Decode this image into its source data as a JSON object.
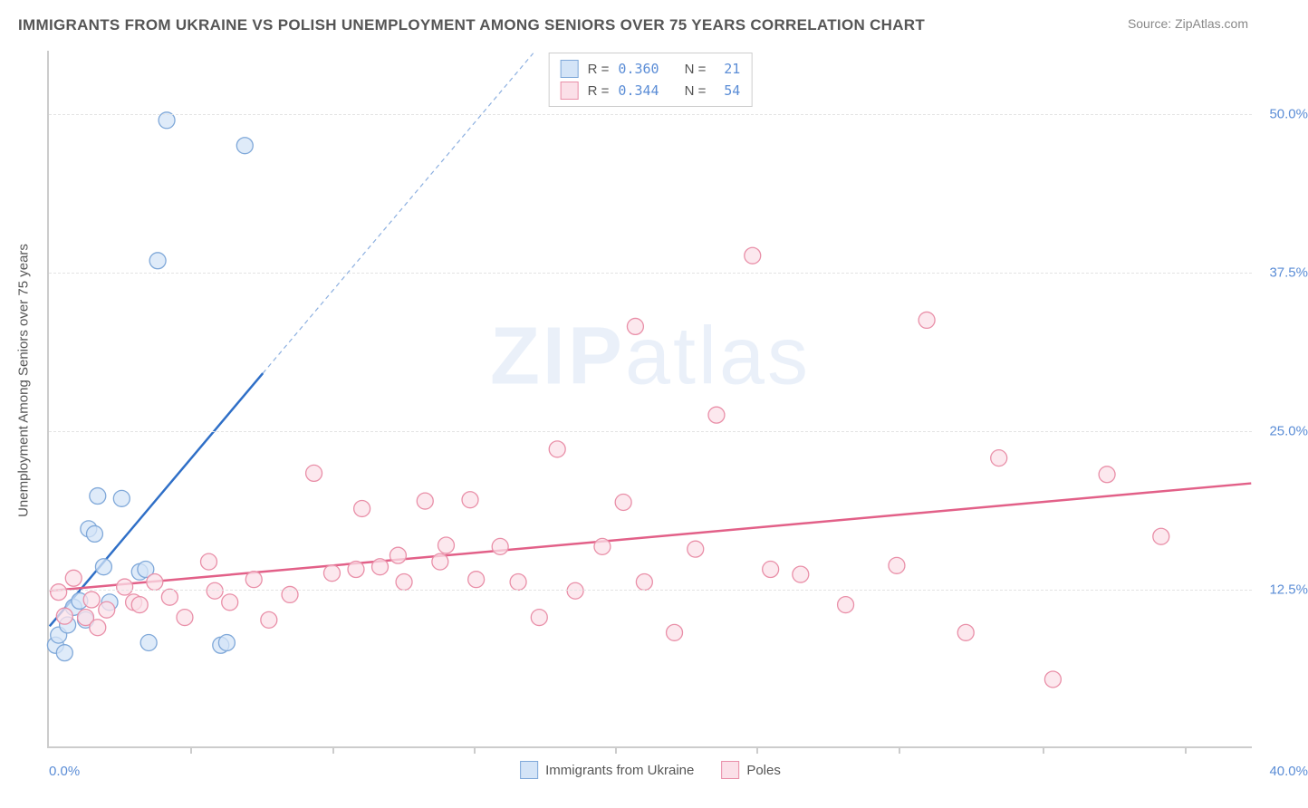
{
  "title": "IMMIGRANTS FROM UKRAINE VS POLISH UNEMPLOYMENT AMONG SENIORS OVER 75 YEARS CORRELATION CHART",
  "source_label": "Source: ",
  "source_value": "ZipAtlas.com",
  "ylabel": "Unemployment Among Seniors over 75 years",
  "watermark_part1": "ZIP",
  "watermark_part2": "atlas",
  "chart": {
    "type": "scatter",
    "xlim": [
      0,
      40
    ],
    "ylim": [
      0,
      55
    ],
    "xtick_labels": [
      "0.0%",
      "40.0%"
    ],
    "xtick_positions": [
      0,
      40
    ],
    "xtick_minor": [
      4.7,
      9.4,
      14.1,
      18.8,
      23.5,
      28.2,
      33,
      37.7
    ],
    "ytick_labels": [
      "12.5%",
      "25.0%",
      "37.5%",
      "50.0%"
    ],
    "ytick_positions": [
      12.5,
      25,
      37.5,
      50
    ],
    "grid_color": "#e3e3e3",
    "axis_color": "#cccccc",
    "background": "#ffffff",
    "marker_radius": 9,
    "marker_stroke_width": 1.3,
    "trend_line_width": 2.5,
    "trend_dash": "5,4"
  },
  "series": [
    {
      "name": "Immigrants from Ukraine",
      "fill": "#d4e4f7",
      "stroke": "#7fa8d9",
      "line_color": "#2f6fc7",
      "R": "0.360",
      "N": "21",
      "trend": {
        "x1": 0,
        "y1": 9.5,
        "x2": 7.1,
        "y2": 29.5,
        "dash_x2": 16.1,
        "dash_y2": 54.8
      },
      "points": [
        [
          0.2,
          8.0
        ],
        [
          0.3,
          8.8
        ],
        [
          0.5,
          7.4
        ],
        [
          0.6,
          9.6
        ],
        [
          0.8,
          11.0
        ],
        [
          1.0,
          11.5
        ],
        [
          1.2,
          10.0
        ],
        [
          1.3,
          17.2
        ],
        [
          1.5,
          16.8
        ],
        [
          1.6,
          19.8
        ],
        [
          1.8,
          14.2
        ],
        [
          2.0,
          11.4
        ],
        [
          2.4,
          19.6
        ],
        [
          3.0,
          13.8
        ],
        [
          3.2,
          14.0
        ],
        [
          3.3,
          8.2
        ],
        [
          3.6,
          38.4
        ],
        [
          5.7,
          8.0
        ],
        [
          5.9,
          8.2
        ],
        [
          3.9,
          49.5
        ],
        [
          6.5,
          47.5
        ]
      ]
    },
    {
      "name": "Poles",
      "fill": "#fbe0e8",
      "stroke": "#e98fa8",
      "line_color": "#e26088",
      "R": "0.344",
      "N": "54",
      "trend": {
        "x1": 0,
        "y1": 12.3,
        "x2": 40,
        "y2": 20.8
      },
      "points": [
        [
          0.3,
          12.2
        ],
        [
          0.5,
          10.3
        ],
        [
          1.2,
          10.2
        ],
        [
          1.4,
          11.6
        ],
        [
          1.6,
          9.4
        ],
        [
          1.9,
          10.8
        ],
        [
          2.5,
          12.6
        ],
        [
          2.8,
          11.4
        ],
        [
          3.0,
          11.2
        ],
        [
          3.5,
          13.0
        ],
        [
          4.0,
          11.8
        ],
        [
          4.5,
          10.2
        ],
        [
          5.3,
          14.6
        ],
        [
          5.5,
          12.3
        ],
        [
          6.0,
          11.4
        ],
        [
          6.8,
          13.2
        ],
        [
          7.3,
          10.0
        ],
        [
          8.0,
          12.0
        ],
        [
          8.8,
          21.6
        ],
        [
          9.4,
          13.7
        ],
        [
          10.2,
          14.0
        ],
        [
          10.4,
          18.8
        ],
        [
          11.0,
          14.2
        ],
        [
          11.6,
          15.1
        ],
        [
          11.8,
          13.0
        ],
        [
          12.5,
          19.4
        ],
        [
          13.0,
          14.6
        ],
        [
          13.2,
          15.9
        ],
        [
          14.0,
          19.5
        ],
        [
          14.2,
          13.2
        ],
        [
          15.0,
          15.8
        ],
        [
          15.6,
          13.0
        ],
        [
          16.3,
          10.2
        ],
        [
          16.9,
          23.5
        ],
        [
          17.5,
          12.3
        ],
        [
          18.4,
          15.8
        ],
        [
          19.1,
          19.3
        ],
        [
          19.5,
          33.2
        ],
        [
          19.8,
          13.0
        ],
        [
          20.8,
          9.0
        ],
        [
          21.5,
          15.6
        ],
        [
          22.2,
          26.2
        ],
        [
          23.4,
          38.8
        ],
        [
          24.0,
          14.0
        ],
        [
          25.0,
          13.6
        ],
        [
          26.5,
          11.2
        ],
        [
          28.2,
          14.3
        ],
        [
          29.2,
          33.7
        ],
        [
          30.5,
          9.0
        ],
        [
          31.6,
          22.8
        ],
        [
          33.4,
          5.3
        ],
        [
          35.2,
          21.5
        ],
        [
          37.0,
          16.6
        ],
        [
          0.8,
          13.3
        ]
      ]
    }
  ],
  "legend_labels": {
    "R": "R =",
    "N": "N ="
  }
}
